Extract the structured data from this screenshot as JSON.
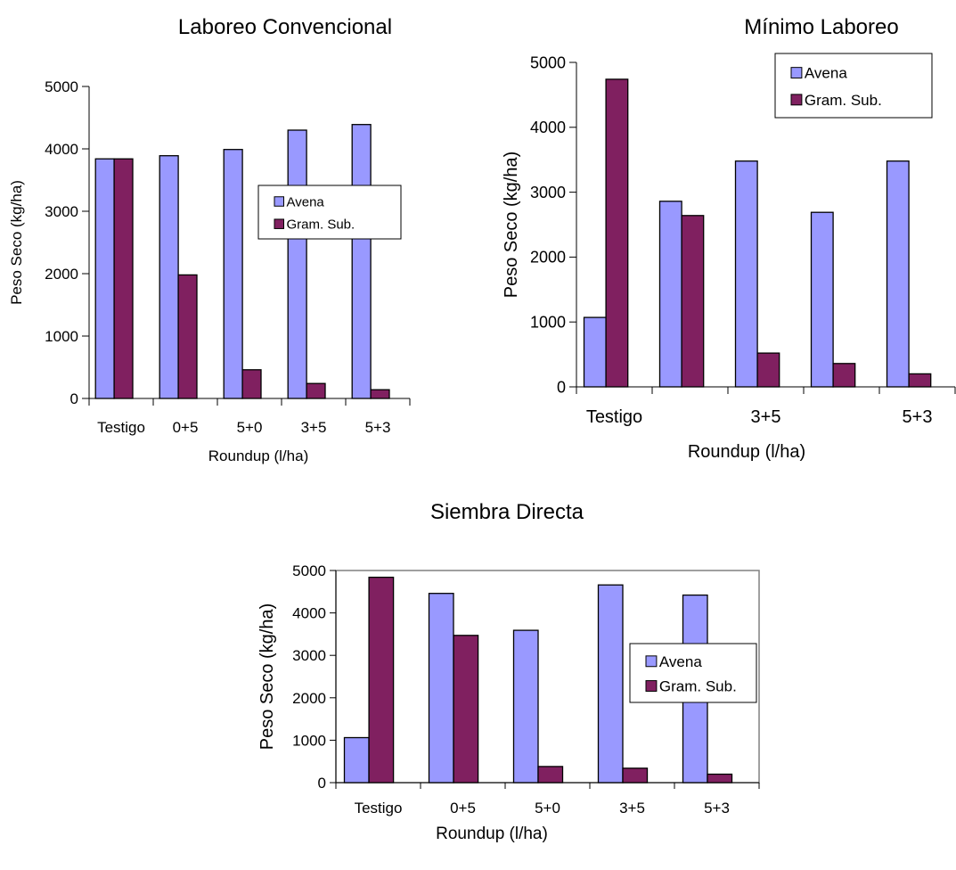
{
  "colors": {
    "avena": "#9999ff",
    "gram": "#802060",
    "stroke": "#000000",
    "frame": "#808080"
  },
  "chart_data": [
    {
      "type": "bar",
      "title": "Laboreo Convencional",
      "xlabel": "Roundup (l/ha)",
      "ylabel": "Peso Seco (kg/ha)",
      "ylim": [
        0,
        5000
      ],
      "yticks": [
        0,
        1000,
        2000,
        3000,
        4000,
        5000
      ],
      "categories": [
        "Testigo",
        "0+5",
        "5+0",
        "3+5",
        "5+3"
      ],
      "legend_position": "center-right",
      "plot_frame": false,
      "series": [
        {
          "name": "Avena",
          "color": "#9999ff",
          "values": [
            3840,
            3890,
            3990,
            4300,
            4390
          ]
        },
        {
          "name": "Gram. Sub.",
          "color": "#802060",
          "values": [
            3840,
            1980,
            460,
            240,
            140
          ]
        }
      ]
    },
    {
      "type": "bar",
      "title": "Mínimo Laboreo",
      "xlabel": "Roundup (l/ha)",
      "ylabel": "Peso Seco (kg/ha)",
      "ylim": [
        0,
        5000
      ],
      "yticks": [
        0,
        1000,
        2000,
        3000,
        4000,
        5000
      ],
      "categories": [
        "Testigo",
        "",
        "3+5",
        "",
        "5+3"
      ],
      "legend_position": "top-right",
      "plot_frame": false,
      "series": [
        {
          "name": "Avena",
          "color": "#9999ff",
          "values": [
            1070,
            2860,
            3480,
            2690,
            3480
          ]
        },
        {
          "name": "Gram. Sub.",
          "color": "#802060",
          "values": [
            4740,
            2640,
            520,
            360,
            200
          ]
        }
      ]
    },
    {
      "type": "bar",
      "title": "Siembra Directa",
      "xlabel": "Roundup (l/ha)",
      "ylabel": "Peso Seco (kg/ha)",
      "ylim": [
        0,
        5000
      ],
      "yticks": [
        0,
        1000,
        2000,
        3000,
        4000,
        5000
      ],
      "categories": [
        "Testigo",
        "0+5",
        "5+0",
        "3+5",
        "5+3"
      ],
      "legend_position": "center-right",
      "plot_frame": true,
      "series": [
        {
          "name": "Avena",
          "color": "#9999ff",
          "values": [
            1060,
            4460,
            3590,
            4660,
            4420
          ]
        },
        {
          "name": "Gram. Sub.",
          "color": "#802060",
          "values": [
            4840,
            3470,
            380,
            340,
            200
          ]
        }
      ]
    }
  ]
}
